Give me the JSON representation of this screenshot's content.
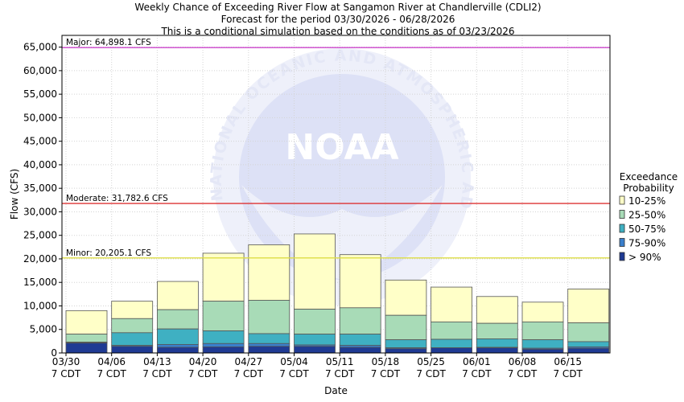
{
  "chart_data": {
    "type": "bar",
    "stacked": true,
    "title": [
      "Weekly Chance of Exceeding River Flow at Sangamon River at Chandlerville (CDLI2)",
      "Forecast for the period 03/30/2026 - 06/28/2026",
      "This is a conditional simulation based on the conditions as of 03/23/2026"
    ],
    "xlabel": "Date",
    "ylabel": "Flow (CFS)",
    "ylim": [
      0,
      67500
    ],
    "yticks": [
      0,
      5000,
      10000,
      15000,
      20000,
      25000,
      30000,
      35000,
      40000,
      45000,
      50000,
      55000,
      60000,
      65000
    ],
    "ytick_labels": [
      "0",
      "5,000",
      "10,000",
      "15,000",
      "20,000",
      "25,000",
      "30,000",
      "35,000",
      "40,000",
      "45,000",
      "50,000",
      "55,000",
      "60,000",
      "65,000"
    ],
    "x_tick_labels": [
      [
        "03/30",
        "7 CDT"
      ],
      [
        "04/06",
        "7 CDT"
      ],
      [
        "04/13",
        "7 CDT"
      ],
      [
        "04/20",
        "7 CDT"
      ],
      [
        "04/27",
        "7 CDT"
      ],
      [
        "05/04",
        "7 CDT"
      ],
      [
        "05/11",
        "7 CDT"
      ],
      [
        "05/18",
        "7 CDT"
      ],
      [
        "05/25",
        "7 CDT"
      ],
      [
        "06/01",
        "7 CDT"
      ],
      [
        "06/08",
        "7 CDT"
      ],
      [
        "06/15",
        "7 CDT"
      ]
    ],
    "weeks": 12,
    "series": [
      {
        "name": "> 90%",
        "color": "#1f3a93",
        "values": [
          2100,
          1400,
          1200,
          1300,
          1400,
          1400,
          1200,
          900,
          1100,
          1100,
          800,
          1000
        ]
      },
      {
        "name": "75-90%",
        "color": "#3a7fcc",
        "values": [
          2200,
          1600,
          1800,
          2000,
          2000,
          1700,
          1600,
          1100,
          1100,
          1200,
          1000,
          1300
        ]
      },
      {
        "name": "50-75%",
        "color": "#3fb0c2",
        "values": [
          2300,
          4300,
          5100,
          4700,
          4100,
          4000,
          4000,
          2800,
          2900,
          3000,
          2800,
          2400
        ]
      },
      {
        "name": "25-50%",
        "color": "#a8dbb7",
        "values": [
          4000,
          7300,
          9200,
          11000,
          11200,
          9300,
          9600,
          8000,
          6600,
          6300,
          6600,
          6400
        ]
      },
      {
        "name": "10-25%",
        "color": "#ffffc8",
        "values": [
          9000,
          11000,
          15200,
          21200,
          23000,
          25300,
          20900,
          15500,
          14000,
          12000,
          10800,
          13600
        ]
      }
    ],
    "thresholds": [
      {
        "label": "Major: 64,898.1 CFS",
        "value": 64898.1,
        "color": "#cc44cc"
      },
      {
        "label": "Moderate: 31,782.6 CFS",
        "value": 31782.6,
        "color": "#dd3333"
      },
      {
        "label": "Minor: 20,205.1 CFS",
        "value": 20205.1,
        "color": "#dddd44"
      }
    ],
    "legend": {
      "title": [
        "Exceedance",
        "Probability"
      ],
      "placement": "right",
      "entries": [
        "10-25%",
        "25-50%",
        "50-75%",
        "75-90%",
        "> 90%"
      ],
      "colors": [
        "#ffffc8",
        "#a8dbb7",
        "#3fb0c2",
        "#3a7fcc",
        "#1f3a93"
      ]
    },
    "grid": true,
    "watermark": {
      "text": "NOAA",
      "ring_text": "NATIONAL OCEANIC AND ATMOSPHERIC ADMINISTRATION"
    }
  }
}
